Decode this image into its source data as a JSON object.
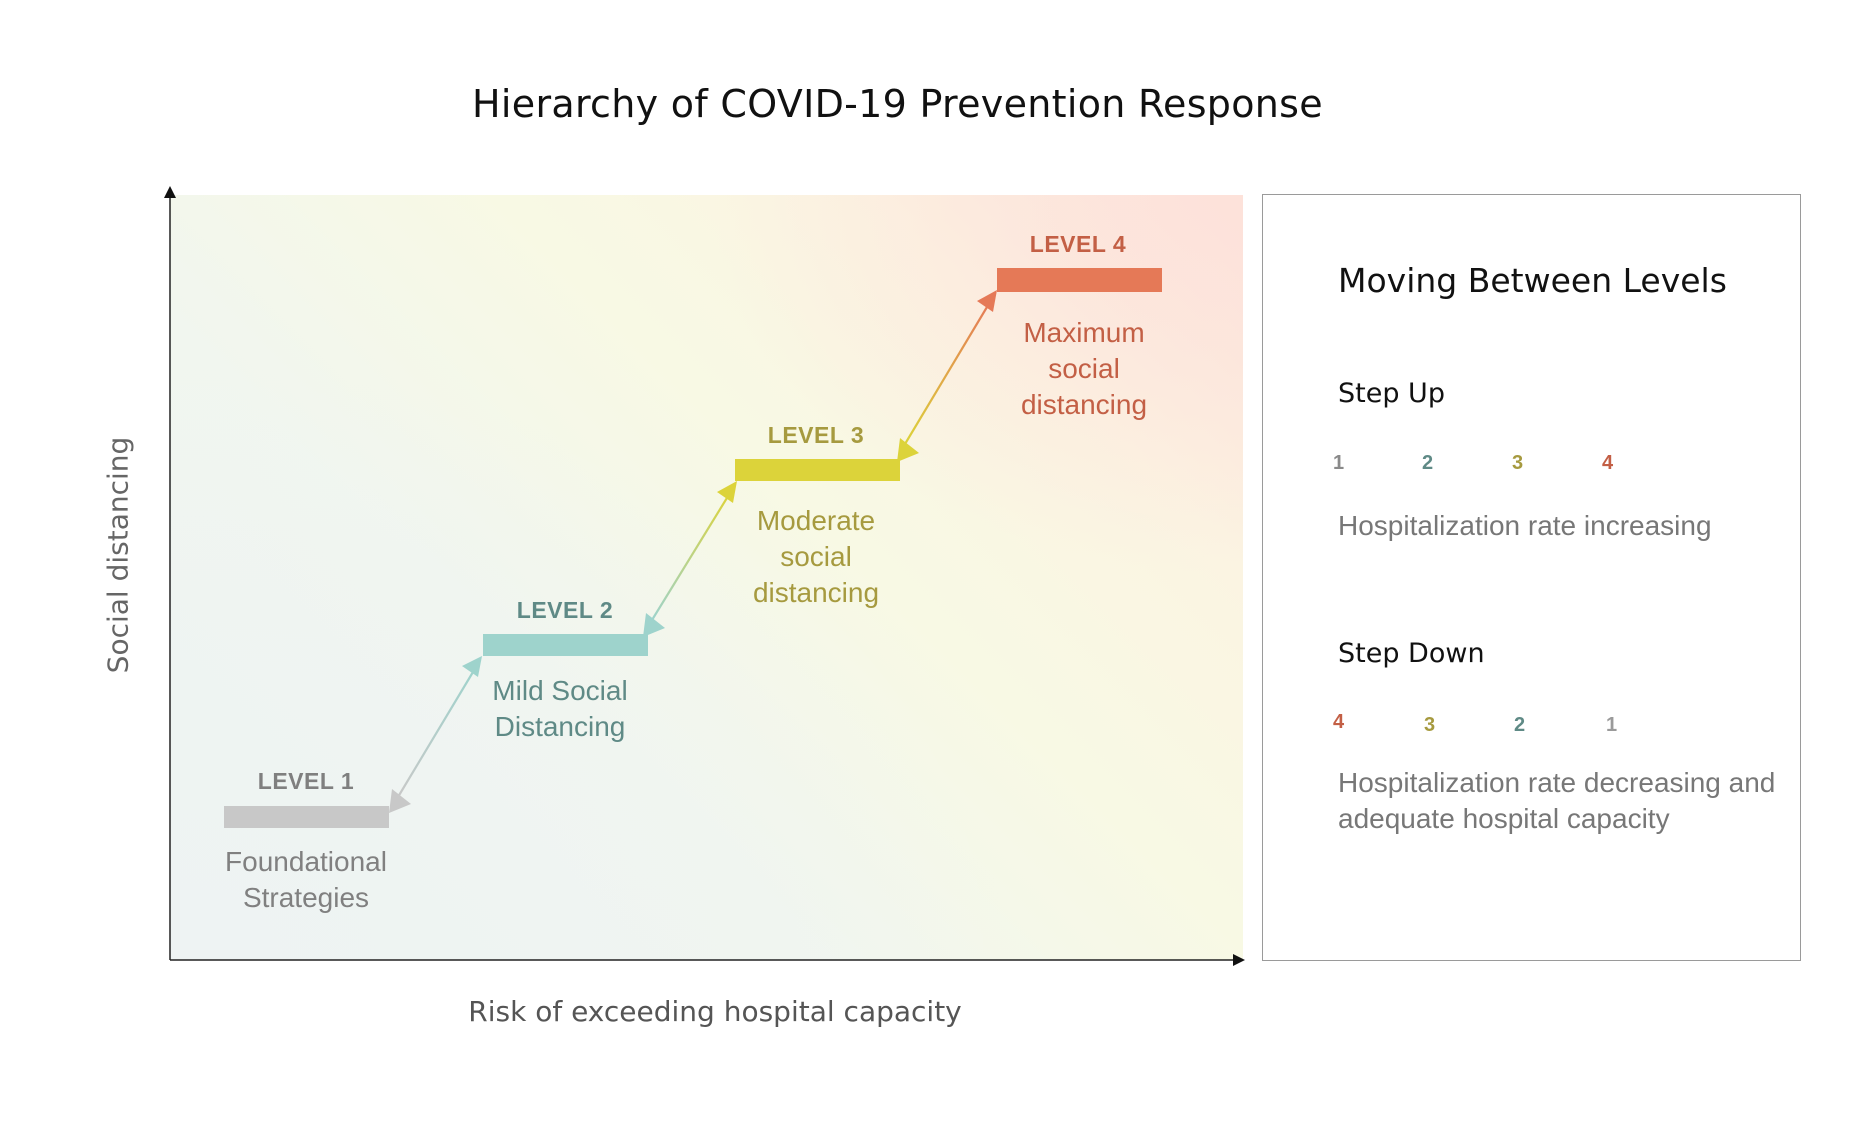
{
  "title": "Hierarchy of COVID-19 Prevention Response",
  "axes": {
    "y_label": "Social distancing",
    "x_label": "Risk of exceeding hospital capacity"
  },
  "levels": [
    {
      "label": "LEVEL 1",
      "description": "Foundational Strategies",
      "color": "#c8c8c8",
      "text_color": "#7f7f7f",
      "desc_color": "#808080"
    },
    {
      "label": "LEVEL 2",
      "description": "Mild Social Distancing",
      "color": "#9ed3cc",
      "text_color": "#5f8a86",
      "desc_color": "#5f8a86"
    },
    {
      "label": "LEVEL 3",
      "description": "Moderate social distancing",
      "color": "#dcd33a",
      "text_color": "#a69a3f",
      "desc_color": "#a69a3f"
    },
    {
      "label": "LEVEL 4",
      "description": "Maximum social distancing",
      "color": "#e57957",
      "text_color": "#c35f45",
      "desc_color": "#c35f45"
    }
  ],
  "legend": {
    "title": "Moving Between Levels",
    "step_up": {
      "heading": "Step Up",
      "sequence": [
        "1",
        "2",
        "3",
        "4"
      ],
      "description": "Hospitalization rate increasing"
    },
    "step_down": {
      "heading": "Step Down",
      "sequence": [
        "4",
        "3",
        "2",
        "1"
      ],
      "description": "Hospitalization rate decreasing and adequate hospital capacity"
    }
  }
}
